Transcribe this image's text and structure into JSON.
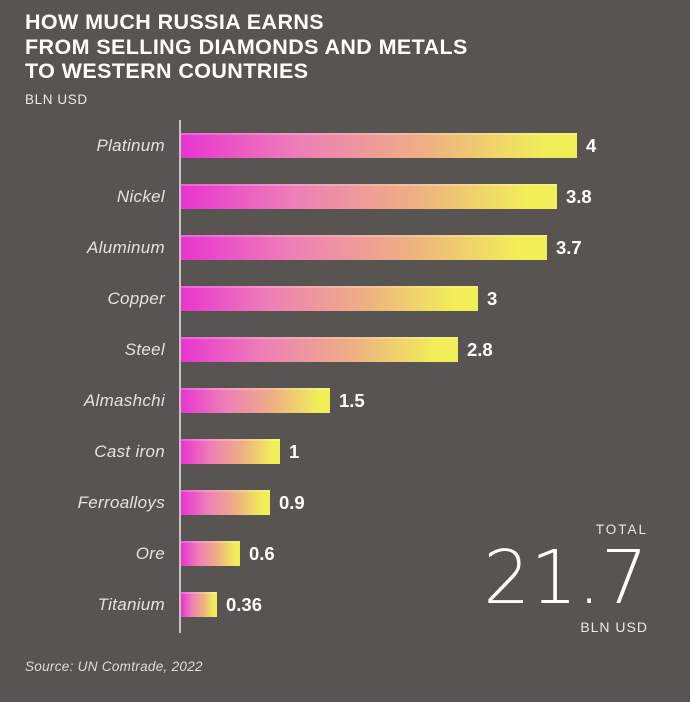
{
  "header": {
    "title_lines": [
      "HOW MUCH RUSSIA EARNS",
      "FROM SELLING DIAMONDS AND METALS",
      "TO WESTERN COUNTRIES"
    ],
    "unit": "BLN USD"
  },
  "chart_data": {
    "type": "bar",
    "orientation": "horizontal",
    "title": "HOW MUCH RUSSIA EARNS FROM SELLING DIAMONDS AND METALS TO WESTERN COUNTRIES",
    "unit": "BLN USD",
    "categories": [
      "Platinum",
      "Nickel",
      "Aluminum",
      "Copper",
      "Steel",
      "Almashchi",
      "Cast iron",
      "Ferroalloys",
      "Ore",
      "Titanium"
    ],
    "values": [
      4,
      3.8,
      3.7,
      3,
      2.8,
      1.5,
      1,
      0.9,
      0.6,
      0.36
    ],
    "value_labels": [
      "4",
      "3.8",
      "3.7",
      "3",
      "2.8",
      "1.5",
      "1",
      "0.9",
      "0.6",
      "0.36"
    ],
    "xlim": [
      0,
      4.2
    ],
    "grid": false,
    "legend": false,
    "bar_gradient": [
      "#e835d0",
      "#f1ee57"
    ]
  },
  "total": {
    "label": "TOTAL",
    "value": "21.7",
    "unit": "BLN USD"
  },
  "source": "Source: UN Comtrade, 2022",
  "colors": {
    "background": "#575451",
    "bar_start": "#e835d0",
    "bar_end": "#f1ee57",
    "axis": "#a6a6a6",
    "text": "#ffffff",
    "muted_text": "#e3e3e3"
  }
}
